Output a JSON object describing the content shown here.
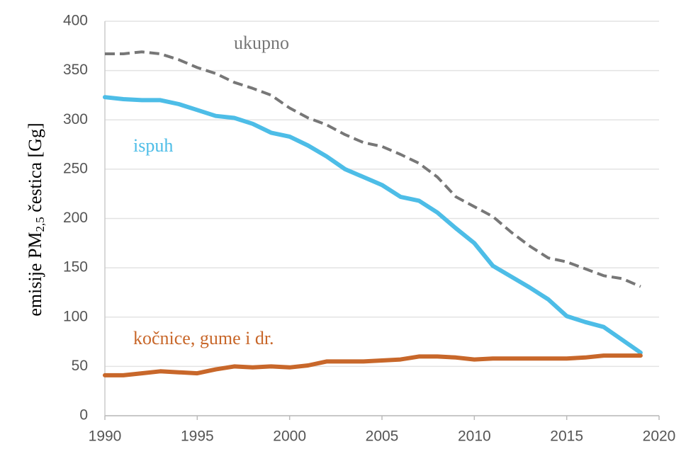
{
  "chart_data": {
    "type": "line",
    "y_label": {
      "text": "emisije PM",
      "subscript": "2,5",
      "suffix": " čestica [Gg]"
    },
    "x": [
      1990,
      1991,
      1992,
      1993,
      1994,
      1995,
      1996,
      1997,
      1998,
      1999,
      2000,
      2001,
      2002,
      2003,
      2004,
      2005,
      2006,
      2007,
      2008,
      2009,
      2010,
      2011,
      2012,
      2013,
      2014,
      2015,
      2016,
      2017,
      2018,
      2019
    ],
    "series": [
      {
        "name": "ukupno",
        "color": "#777777",
        "dash": true,
        "values": [
          367,
          367,
          369,
          367,
          361,
          353,
          347,
          338,
          332,
          325,
          312,
          302,
          295,
          285,
          277,
          273,
          265,
          256,
          242,
          222,
          212,
          202,
          186,
          172,
          160,
          156,
          149,
          142,
          139,
          131
        ]
      },
      {
        "name": "ispuh",
        "color": "#4dbde7",
        "dash": false,
        "values": [
          323,
          321,
          320,
          320,
          316,
          310,
          304,
          302,
          296,
          287,
          283,
          274,
          263,
          250,
          242,
          234,
          222,
          218,
          206,
          190,
          175,
          152,
          141,
          130,
          118,
          101,
          95,
          90,
          77,
          64
        ]
      },
      {
        "name": "kočnice, gume i dr.",
        "color": "#c8672a",
        "dash": false,
        "values": [
          41,
          41,
          43,
          45,
          44,
          43,
          47,
          50,
          49,
          50,
          49,
          51,
          55,
          55,
          55,
          56,
          57,
          60,
          60,
          59,
          57,
          58,
          58,
          58,
          58,
          58,
          59,
          61,
          61,
          61
        ]
      }
    ],
    "xlim": [
      1990,
      2020
    ],
    "xticks": [
      1990,
      1995,
      2000,
      2005,
      2010,
      2015,
      2020
    ],
    "ylim": [
      0,
      400
    ],
    "yticks": [
      0,
      50,
      100,
      150,
      200,
      250,
      300,
      350,
      400
    ],
    "grid": true
  }
}
